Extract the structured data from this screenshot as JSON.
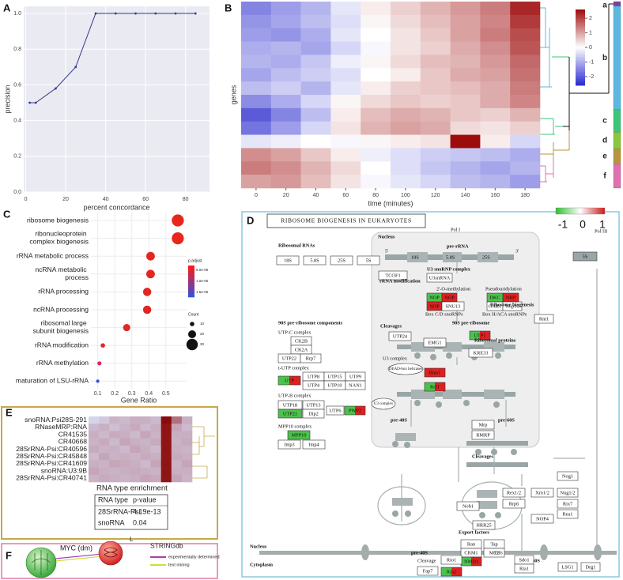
{
  "panel_labels": [
    "A",
    "B",
    "C",
    "D",
    "E",
    "F"
  ],
  "chart_data": [
    {
      "type": "line",
      "x_label": "percent concordance",
      "y_label": "precision",
      "x": [
        2,
        5,
        15,
        25,
        35,
        45,
        55,
        65,
        75,
        85
      ],
      "values": [
        0.5,
        0.5,
        0.58,
        0.7,
        1.0,
        1.0,
        1.0,
        1.0,
        1.0,
        1.0
      ],
      "color": "#3a3a8f",
      "background": "#eaeaf2",
      "xlim": [
        -1,
        92
      ],
      "ylim": [
        0,
        1.04
      ],
      "xticks": [
        0,
        20,
        40,
        60,
        80
      ],
      "yticks": [
        {
          "value": 0,
          "label": "0.0"
        },
        0.2,
        0.4,
        0.6,
        0.8,
        {
          "value": 1,
          "label": "1.0"
        }
      ],
      "grid": true
    },
    {
      "type": "heatmap",
      "x_label": "time (minutes)",
      "y_label": "genes",
      "x": [
        0,
        20,
        40,
        60,
        80,
        100,
        120,
        140,
        160,
        180
      ],
      "xlim": [
        -10,
        190
      ],
      "xticks": [
        0,
        20,
        40,
        60,
        80,
        100,
        120,
        140,
        160,
        180
      ],
      "values": [
        [
          -1.5,
          -1.2,
          -0.9,
          -0.3,
          0.2,
          0.5,
          0.8,
          1.1,
          1.4,
          2.3
        ],
        [
          -1.3,
          -1.1,
          -0.8,
          -0.4,
          0.1,
          0.4,
          0.7,
          1.0,
          1.3,
          2.1
        ],
        [
          -1.2,
          -1.3,
          -1.0,
          -0.3,
          0.0,
          0.3,
          0.6,
          1.0,
          1.4,
          1.9
        ],
        [
          -1.0,
          -0.9,
          -1.1,
          -0.5,
          -0.1,
          0.3,
          0.5,
          0.9,
          1.2,
          1.8
        ],
        [
          -0.9,
          -1.0,
          -0.7,
          -0.2,
          0.1,
          0.4,
          0.7,
          0.8,
          1.1,
          1.6
        ],
        [
          -1.1,
          -0.8,
          -0.6,
          -0.4,
          0.0,
          0.2,
          0.6,
          0.9,
          1.0,
          1.5
        ],
        [
          -0.8,
          -0.6,
          -0.9,
          -0.3,
          0.2,
          0.5,
          0.6,
          0.7,
          0.9,
          1.4
        ],
        [
          -1.4,
          -1.0,
          -0.5,
          0.1,
          0.4,
          0.6,
          0.5,
          0.6,
          0.9,
          1.3
        ],
        [
          -2.0,
          -1.5,
          -0.8,
          0.2,
          0.7,
          0.9,
          0.8,
          0.6,
          0.5,
          0.8
        ],
        [
          -1.7,
          -1.2,
          -0.5,
          0.3,
          0.8,
          1.0,
          0.9,
          0.4,
          0.3,
          0.5
        ],
        [
          -0.3,
          -0.2,
          0.0,
          -0.1,
          0.1,
          0.2,
          0.3,
          2.8,
          0.2,
          -0.5
        ],
        [
          1.2,
          1.0,
          0.6,
          0.2,
          -0.2,
          -0.4,
          -0.6,
          -0.7,
          -0.8,
          -1.0
        ],
        [
          1.4,
          1.2,
          0.8,
          0.4,
          0.0,
          -0.4,
          -0.7,
          -0.9,
          -1.1,
          -0.9
        ],
        [
          1.0,
          1.1,
          0.7,
          0.3,
          -0.1,
          -0.3,
          -0.5,
          -0.8,
          -0.9,
          -1.2
        ]
      ],
      "zlim": [
        -2.6,
        2.6
      ],
      "colorbar_ticks": [
        2,
        1,
        0,
        -1,
        -2
      ],
      "colors": [
        "#2a2acf",
        "#ffffff",
        "#9e0b0b"
      ],
      "clusters": [
        {
          "name": "a",
          "color": "#7b3f9e"
        },
        {
          "name": "b",
          "color": "#5bb8e0"
        },
        {
          "name": "c",
          "color": "#3cc67a"
        },
        {
          "name": "d",
          "color": "#8cc63c"
        },
        {
          "name": "e",
          "color": "#b8963c"
        },
        {
          "name": "f",
          "color": "#e070b0"
        }
      ]
    },
    {
      "type": "dot",
      "x_label": "Gene Ratio",
      "categories": [
        "ribosome biogenesis",
        "ribonucleoprotein complex biogenesis",
        "rRNA metabolic process",
        "ncRNA metabolic process",
        "rRNA processing",
        "ncRNA processing",
        "ribosomal large subunit biogenesis",
        "rRNA modification",
        "rRNA methylation",
        "maturation of LSU-rRNA"
      ],
      "values": [
        0.57,
        0.57,
        0.41,
        0.41,
        0.39,
        0.39,
        0.27,
        0.13,
        0.11,
        0.1
      ],
      "sizes": [
        32,
        32,
        22,
        22,
        21,
        21,
        18,
        10,
        9,
        7
      ],
      "colors": [
        "#e8261c",
        "#e8261c",
        "#e3261f",
        "#e3261f",
        "#e02522",
        "#e02522",
        "#e0272a",
        "#e0262e",
        "#d8295a",
        "#3a4fd8"
      ],
      "xlim": [
        0.06,
        0.64
      ],
      "xticks": [
        0.1,
        0.2,
        0.3,
        0.4,
        0.5
      ],
      "grid": true,
      "legend": {
        "color_title": "p.adjust",
        "color_labels": [
          "5.0e-06",
          "1.0e-05",
          "1.5e-05"
        ],
        "color_range": [
          "#ff1a1a",
          "#3a4fd8"
        ],
        "size_title": "Count",
        "size_values": [
          10,
          20,
          30
        ]
      }
    }
  ],
  "pathway": {
    "title": "RIBOSOME BIOGENESIS IN EUKARYOTES",
    "colorbar_labels": [
      -1,
      0,
      1
    ],
    "nodes": [
      "Ribosomal RNAs",
      "18S",
      "5.8S",
      "25S",
      "5S",
      "Nucleus",
      "Pol I",
      "pre-rRNA",
      "5'",
      "3'",
      "18S",
      "5.8S",
      "25S",
      "Pol III",
      "5S",
      "TCOF1",
      "U3 snoRNP complex",
      "U3snRNA",
      "rRNA modification",
      "2'-O-methylation",
      "Pseudouridylation",
      "NOP",
      "NOP",
      "NOP",
      "SNU13",
      "DKC",
      "NHP",
      "GAR1",
      "Nop10",
      "Box C/D snoRNPs",
      "Box H/ACA snoRNPs",
      "90S pre-ribosome components",
      "UTP-C complex",
      "CK2B",
      "CK2A",
      "UTP22",
      "Rrp7",
      "t-UTP complex",
      "UTP",
      "UTP8",
      "UTP15",
      "UTP9",
      "UTP4",
      "UTP10",
      "NAN1",
      "UTP-B complex",
      "UTP18",
      "UTP13",
      "UTP21",
      "Dip2",
      "UTP6",
      "PWP2",
      "MPP10 complex",
      "MPP10",
      "Imp3",
      "Imp4",
      "Cleavages",
      "UTP24",
      "90S pre-ribosome",
      "UTP1",
      "Ribosome biogenesis",
      "Rnt1",
      "U3 complex",
      "EMG1",
      "Ribosomal proteins",
      "DEAD-box helicases",
      "Bms1",
      "KRE33",
      "Rcl1",
      "U3 complex",
      "pre-40S",
      "pre-60S",
      "Mrp",
      "RMRP",
      "Cleavages",
      "Nog1",
      "Nug1/2",
      "Rix7",
      "Rea1",
      "Rex1/2",
      "Xrn1/2",
      "Rrp6",
      "NOP4",
      "Nob1",
      "HRR25",
      "Export factors",
      "Ran",
      "Tap",
      "CRM1",
      "Mtr2",
      "NMD3",
      "Tif6",
      "Nucleus",
      "pre-40S",
      "pre-60S",
      "Cytoplasm",
      "Cleavage",
      "Fap7",
      "Rio1",
      "Rio2",
      "Sdo1",
      "Ria1",
      "LSG1",
      "Drg1"
    ]
  },
  "enrichment": {
    "rows": [
      "snoRNA:Psi28S-291",
      "RNaseMRP:RNA",
      "CR41535",
      "CR40668",
      "28SrRNA-Psi:CR40596",
      "28SrRNA-Psi:CR45848",
      "28SrRNA-Psi:CR41609",
      "snoRNA:U3:9B",
      "28SrRNA-Psi:CR40741"
    ],
    "values": [
      [
        0.02,
        0.08,
        0.18,
        0.15,
        0.2,
        0.2,
        0.15,
        1.0,
        0.5,
        0.2
      ],
      [
        0.15,
        0.2,
        0.12,
        0.18,
        0.22,
        0.15,
        0.2,
        0.95,
        0.25,
        0.15
      ],
      [
        0.2,
        0.15,
        0.22,
        0.2,
        0.15,
        0.25,
        0.18,
        0.95,
        0.2,
        0.2
      ],
      [
        0.18,
        0.22,
        0.15,
        0.25,
        0.2,
        0.18,
        0.22,
        0.95,
        0.18,
        0.22
      ],
      [
        0.22,
        0.18,
        0.2,
        0.15,
        0.25,
        0.2,
        0.15,
        0.95,
        0.2,
        0.18
      ],
      [
        0.15,
        0.25,
        0.18,
        0.2,
        0.18,
        0.22,
        0.2,
        0.95,
        0.22,
        0.2
      ],
      [
        0.2,
        0.18,
        0.25,
        0.22,
        0.2,
        0.15,
        0.25,
        0.95,
        0.18,
        0.25
      ],
      [
        0.25,
        0.2,
        0.18,
        0.2,
        0.22,
        0.2,
        0.18,
        0.95,
        0.2,
        0.2
      ],
      [
        0.18,
        0.22,
        0.2,
        0.18,
        0.2,
        0.25,
        0.22,
        0.95,
        0.25,
        0.18
      ]
    ],
    "zlim": [
      0,
      1
    ],
    "colors": [
      "#d8d8f0",
      "#8b0a0a"
    ],
    "table_title": "RNA type enrichment",
    "table": {
      "header": [
        "RNA type",
        "p-value"
      ],
      "rows": [
        [
          "28SrRNA-Psi",
          "4.19e-13"
        ],
        [
          "snoRNA",
          "0.04"
        ]
      ]
    }
  },
  "network": {
    "nodes": [
      "MYC (dm)",
      "L"
    ],
    "source": "STRINGdb",
    "legend": [
      {
        "name": "experimentally determined",
        "color": "#b03ab0"
      },
      {
        "name": "text mining",
        "color": "#c8e03c"
      }
    ]
  }
}
